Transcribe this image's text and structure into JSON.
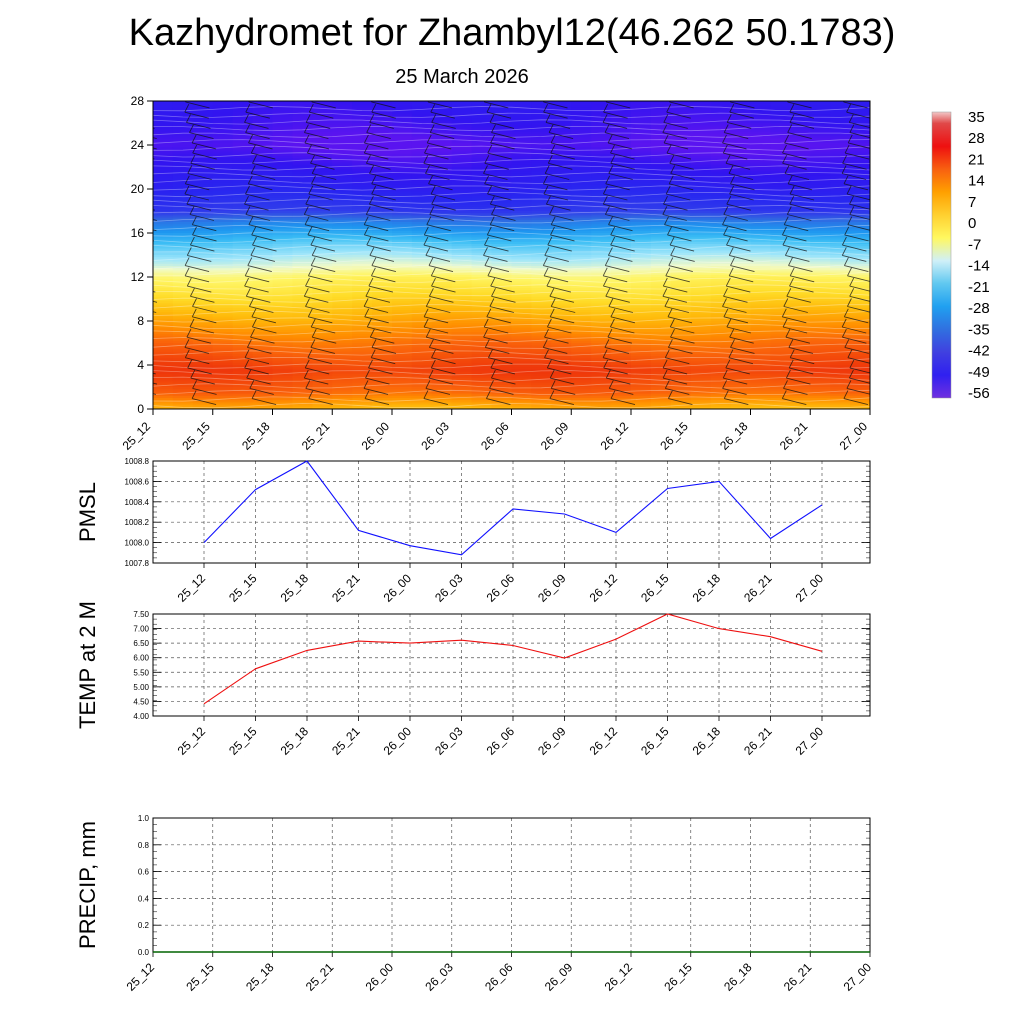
{
  "title": "Kazhydromet for Zhambyl12(46.262 50.1783)",
  "subtitle": "25 March 2026",
  "colors": {
    "pmsl_line": "#1010ff",
    "temp_line": "#ee1010",
    "precip_line": "#006400",
    "grid": "#555555"
  },
  "chart_data": [
    {
      "type": "heatmap",
      "x_tick_labels": [
        "25_12",
        "25_15",
        "25_18",
        "25_21",
        "26_00",
        "26_03",
        "26_06",
        "26_09",
        "26_12",
        "26_15",
        "26_18",
        "26_21",
        "27_00"
      ],
      "y_ticks": [
        0,
        4,
        8,
        12,
        16,
        20,
        24,
        28
      ],
      "ylim": [
        0,
        28
      ],
      "colorbar_labels": [
        "35",
        "28",
        "21",
        "14",
        "7",
        "0",
        "-7",
        "-14",
        "-21",
        "-28",
        "-35",
        "-42",
        "-49",
        "-56"
      ],
      "colorbar_range": [
        -60,
        38
      ],
      "temperature_profile": [
        {
          "level": 0,
          "value": 5
        },
        {
          "level": 1.5,
          "value": 14
        },
        {
          "level": 3.5,
          "value": 19
        },
        {
          "level": 6,
          "value": 13
        },
        {
          "level": 9,
          "value": 4
        },
        {
          "level": 12,
          "value": -6
        },
        {
          "level": 13,
          "value": -13
        },
        {
          "level": 15,
          "value": -22
        },
        {
          "level": 17,
          "value": -34
        },
        {
          "level": 18,
          "value": -46
        },
        {
          "level": 20,
          "value": -52
        },
        {
          "level": 22,
          "value": -56
        },
        {
          "level": 24,
          "value": -60
        },
        {
          "level": 26,
          "value": -57
        },
        {
          "level": 28,
          "value": -55
        }
      ],
      "wind_barbs": "present",
      "grid": false
    },
    {
      "type": "line",
      "ylabel": "PMSL",
      "x": [
        "25_12",
        "25_15",
        "25_18",
        "25_21",
        "26_00",
        "26_03",
        "26_06",
        "26_09",
        "26_12",
        "26_15",
        "26_18",
        "26_21",
        "27_00"
      ],
      "series": [
        {
          "values": [
            1008.0,
            1008.52,
            1008.8,
            1008.12,
            1007.97,
            1007.88,
            1008.33,
            1008.28,
            1008.1,
            1008.53,
            1008.6,
            1008.04,
            1008.37
          ]
        }
      ],
      "y_ticks": [
        "1007.8",
        "1008.0",
        "1008.2",
        "1008.4",
        "1008.6",
        "1008.8"
      ],
      "ylim": [
        1007.8,
        1008.8
      ],
      "grid": true
    },
    {
      "type": "line",
      "ylabel": "TEMP at 2 M",
      "x": [
        "25_12",
        "25_15",
        "25_18",
        "25_21",
        "26_00",
        "26_03",
        "26_06",
        "26_09",
        "26_12",
        "26_15",
        "26_18",
        "26_21",
        "27_00"
      ],
      "series": [
        {
          "values": [
            4.42,
            5.62,
            6.25,
            6.57,
            6.5,
            6.6,
            6.42,
            5.99,
            6.64,
            7.5,
            7.0,
            6.72,
            6.22
          ]
        }
      ],
      "y_ticks": [
        "4.00",
        "4.50",
        "5.00",
        "5.50",
        "6.00",
        "6.50",
        "7.00",
        "7.50"
      ],
      "ylim": [
        4.0,
        7.5
      ],
      "grid": true
    },
    {
      "type": "line",
      "ylabel": "PRECIP, mm",
      "x": [
        "25_12",
        "25_15",
        "25_18",
        "25_21",
        "26_00",
        "26_03",
        "26_06",
        "26_09",
        "26_12",
        "26_15",
        "26_18",
        "26_21",
        "27_00"
      ],
      "series": [
        {
          "values": [
            0,
            0,
            0,
            0,
            0,
            0,
            0,
            0,
            0,
            0,
            0,
            0,
            0
          ]
        }
      ],
      "y_ticks": [
        "0.0",
        "0.2",
        "0.4",
        "0.6",
        "0.8",
        "1.0"
      ],
      "ylim": [
        0,
        1.0
      ],
      "grid": true
    }
  ]
}
